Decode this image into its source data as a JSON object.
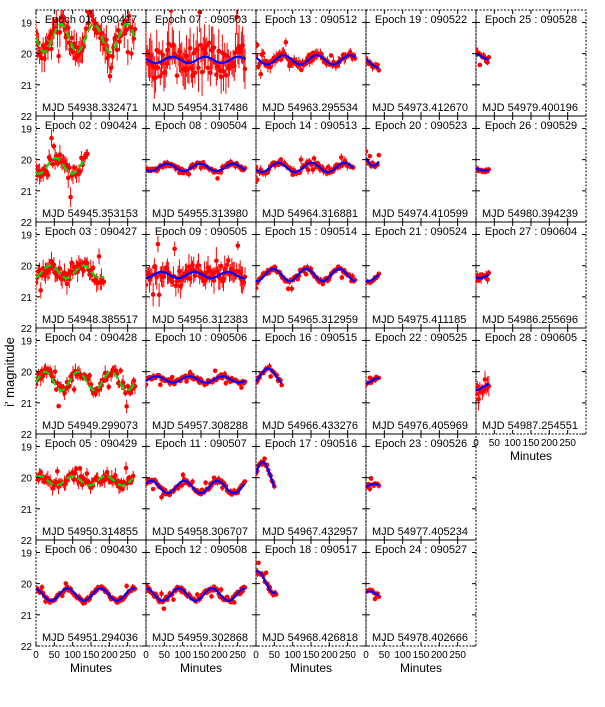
{
  "chart_data": {
    "type": "scatter",
    "ylabel": "i' magnitude",
    "xlabel": "Minutes",
    "xlim": [
      0,
      300
    ],
    "xticks": [
      0,
      50,
      100,
      150,
      200,
      250
    ],
    "ylim": [
      22,
      18.6
    ],
    "yticks": [
      19,
      20,
      21,
      22
    ],
    "y_inverted": true,
    "colors": {
      "data": "#ff0000",
      "fit_blue": "#0000ff",
      "fit_green": "#00dd00"
    },
    "panels": [
      {
        "epoch": "Epoch 01 : 090417",
        "mjd": "MJD  54938.332471",
        "col": 0,
        "row": 0,
        "duration": 270,
        "base": 19.5,
        "amp": 0.45,
        "scatter": 0.5,
        "fit": "green",
        "period": 90
      },
      {
        "epoch": "Epoch 02 : 090424",
        "mjd": "MJD  54945.353153",
        "col": 0,
        "row": 1,
        "duration": 140,
        "base": 20.2,
        "amp": 0.25,
        "scatter": 0.35,
        "fit": "green",
        "period": 90
      },
      {
        "epoch": "Epoch 03 : 090427",
        "mjd": "MJD  54948.385517",
        "col": 0,
        "row": 2,
        "duration": 185,
        "base": 20.2,
        "amp": 0.2,
        "scatter": 0.35,
        "fit": "green",
        "period": 90
      },
      {
        "epoch": "Epoch 04 : 090428",
        "mjd": "MJD  54949.299073",
        "col": 0,
        "row": 3,
        "duration": 270,
        "base": 20.3,
        "amp": 0.3,
        "scatter": 0.25,
        "fit": "green",
        "period": 90
      },
      {
        "epoch": "Epoch 05 : 090429",
        "mjd": "MJD  54950.314855",
        "col": 0,
        "row": 4,
        "duration": 265,
        "base": 20.1,
        "amp": 0.15,
        "scatter": 0.25,
        "fit": "green",
        "period": 90
      },
      {
        "epoch": "Epoch 06 : 090430",
        "mjd": "MJD  54951.294036",
        "col": 0,
        "row": 5,
        "duration": 270,
        "base": 20.35,
        "amp": 0.2,
        "scatter": 0.12,
        "fit": "blue",
        "period": 90
      },
      {
        "epoch": "Epoch 07 : 090503",
        "mjd": "MJD  54954.317486",
        "col": 1,
        "row": 0,
        "duration": 270,
        "base": 20.2,
        "amp": 0.1,
        "scatter": 0.8,
        "fit": "blue",
        "period": 90
      },
      {
        "epoch": "Epoch 08 : 090504",
        "mjd": "MJD  54955.313980",
        "col": 1,
        "row": 1,
        "duration": 270,
        "base": 20.25,
        "amp": 0.12,
        "scatter": 0.12,
        "fit": "blue",
        "period": 90
      },
      {
        "epoch": "Epoch 09 : 090505",
        "mjd": "MJD  54956.312383",
        "col": 1,
        "row": 2,
        "duration": 270,
        "base": 20.3,
        "amp": 0.1,
        "scatter": 0.45,
        "fit": "blue",
        "period": 90
      },
      {
        "epoch": "Epoch 10 : 090506",
        "mjd": "MJD  54957.308288",
        "col": 1,
        "row": 3,
        "duration": 270,
        "base": 20.25,
        "amp": 0.1,
        "scatter": 0.12,
        "fit": "blue",
        "period": 90
      },
      {
        "epoch": "Epoch 11 : 090507",
        "mjd": "MJD  54958.306707",
        "col": 1,
        "row": 4,
        "duration": 270,
        "base": 20.3,
        "amp": 0.2,
        "scatter": 0.12,
        "fit": "blue",
        "period": 90
      },
      {
        "epoch": "Epoch 12 : 090508",
        "mjd": "MJD  54959.302868",
        "col": 1,
        "row": 5,
        "duration": 270,
        "base": 20.35,
        "amp": 0.2,
        "scatter": 0.12,
        "fit": "blue",
        "period": 90
      },
      {
        "epoch": "Epoch 13 : 090512",
        "mjd": "MJD  54963.295534",
        "col": 2,
        "row": 0,
        "duration": 270,
        "base": 20.2,
        "amp": 0.15,
        "scatter": 0.2,
        "fit": "blue",
        "period": 90
      },
      {
        "epoch": "Epoch 14 : 090513",
        "mjd": "MJD  54964.316881",
        "col": 2,
        "row": 1,
        "duration": 265,
        "base": 20.25,
        "amp": 0.15,
        "scatter": 0.15,
        "fit": "blue",
        "period": 90
      },
      {
        "epoch": "Epoch 15 : 090514",
        "mjd": "MJD  54965.312959",
        "col": 2,
        "row": 2,
        "duration": 270,
        "base": 20.3,
        "amp": 0.2,
        "scatter": 0.12,
        "fit": "blue",
        "period": 90
      },
      {
        "epoch": "Epoch 16 : 090515",
        "mjd": "MJD  54966.433276",
        "col": 2,
        "row": 3,
        "duration": 70,
        "base": 20.15,
        "amp": 0.25,
        "scatter": 0.12,
        "fit": "blue",
        "period": 90
      },
      {
        "epoch": "Epoch 17 : 090516",
        "mjd": "MJD  54967.432957",
        "col": 2,
        "row": 4,
        "duration": 50,
        "base": 20.0,
        "amp": 0.5,
        "scatter": 0.12,
        "fit": "blue",
        "period": 90
      },
      {
        "epoch": "Epoch 18 : 090517",
        "mjd": "MJD  54968.426818",
        "col": 2,
        "row": 5,
        "duration": 55,
        "base": 19.95,
        "amp": 0.35,
        "scatter": 0.15,
        "fit": "blue",
        "period": 90
      },
      {
        "epoch": "Epoch 19 : 090522",
        "mjd": "MJD  54973.412670",
        "col": 3,
        "row": 0,
        "duration": 35,
        "base": 20.3,
        "amp": 0.15,
        "scatter": 0.15,
        "fit": "blue",
        "period": 90
      },
      {
        "epoch": "Epoch 20 : 090523",
        "mjd": "MJD  54974.410599",
        "col": 3,
        "row": 1,
        "duration": 35,
        "base": 19.9,
        "amp": 0.3,
        "scatter": 0.12,
        "fit": "blue",
        "period": 90
      },
      {
        "epoch": "Epoch 21 : 090524",
        "mjd": "MJD  54975.411185",
        "col": 3,
        "row": 2,
        "duration": 35,
        "base": 20.35,
        "amp": 0.15,
        "scatter": 0.1,
        "fit": "blue",
        "period": 90
      },
      {
        "epoch": "Epoch 22 : 090525",
        "mjd": "MJD  54976.405969",
        "col": 3,
        "row": 3,
        "duration": 35,
        "base": 20.3,
        "amp": 0.1,
        "scatter": 0.1,
        "fit": "blue",
        "period": 90
      },
      {
        "epoch": "Epoch 23 : 090526",
        "mjd": "MJD  54977.405234",
        "col": 3,
        "row": 4,
        "duration": 35,
        "base": 20.3,
        "amp": 0.1,
        "scatter": 0.1,
        "fit": "blue",
        "period": 90
      },
      {
        "epoch": "Epoch 24 : 090527",
        "mjd": "MJD  54978.402666",
        "col": 3,
        "row": 5,
        "duration": 35,
        "base": 20.35,
        "amp": 0.1,
        "scatter": 0.1,
        "fit": "blue",
        "period": 90
      },
      {
        "epoch": "Epoch 25 : 090528",
        "mjd": "MJD  54979.400196",
        "col": 4,
        "row": 0,
        "duration": 35,
        "base": 20.1,
        "amp": 0.1,
        "scatter": 0.15,
        "fit": "blue",
        "period": 90
      },
      {
        "epoch": "Epoch 26 : 090529",
        "mjd": "MJD  54980.394239",
        "col": 4,
        "row": 1,
        "duration": 35,
        "base": 20.3,
        "amp": 0.05,
        "scatter": 0.08,
        "fit": "blue",
        "period": 90
      },
      {
        "epoch": "Epoch 27 : 090604",
        "mjd": "MJD  54986.255696",
        "col": 4,
        "row": 2,
        "duration": 35,
        "base": 20.3,
        "amp": 0.1,
        "scatter": 0.2,
        "fit": "blue",
        "period": 90
      },
      {
        "epoch": "Epoch 28 : 090605",
        "mjd": "MJD  54987.254551",
        "col": 4,
        "row": 3,
        "duration": 35,
        "base": 20.5,
        "amp": 0.1,
        "scatter": 0.35,
        "fit": "blue",
        "period": 90
      }
    ]
  }
}
